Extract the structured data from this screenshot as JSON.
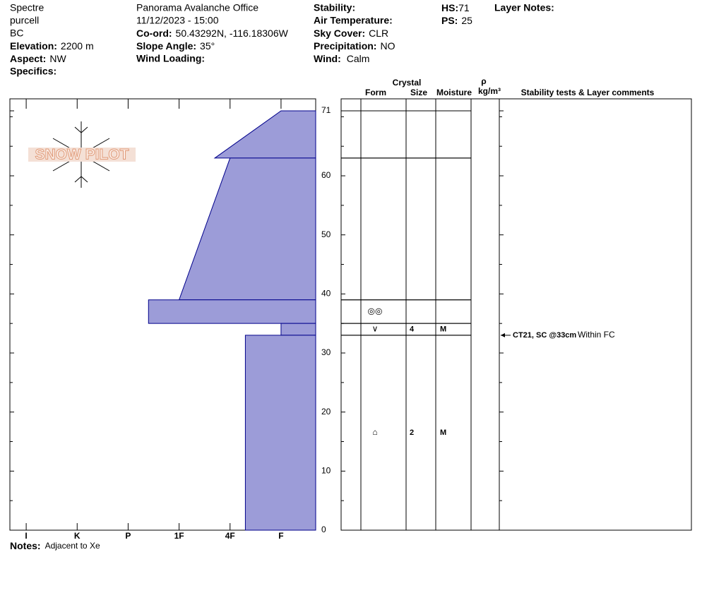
{
  "header": {
    "observer": "Spectre",
    "range": "purcell",
    "region": "BC",
    "elevation": {
      "label": "Elevation:",
      "value": "2200 m"
    },
    "aspect": {
      "label": "Aspect:",
      "value": "NW"
    },
    "specifics": {
      "label": "Specifics:"
    },
    "location": "Panorama Avalanche Office",
    "datetime": "11/12/2023 - 15:00",
    "coord": {
      "label": "Co-ord:",
      "value": "50.43292N, -116.18306W"
    },
    "slope_angle": {
      "label": "Slope Angle:",
      "value": "35°"
    },
    "wind_loading": {
      "label": "Wind Loading:"
    },
    "stability": {
      "label": "Stability:"
    },
    "air_temperature": {
      "label": "Air Temperature:"
    },
    "sky_cover": {
      "label": "Sky Cover:",
      "value": "CLR"
    },
    "precipitation": {
      "label": "Precipitation:",
      "value": "NO"
    },
    "wind": {
      "label": "Wind:",
      "value": "Calm"
    },
    "hs": {
      "label": "HS:",
      "value": 71
    },
    "ps": {
      "label": "PS:",
      "value": 25
    },
    "layer_notes": {
      "label": "Layer Notes:"
    }
  },
  "logo": "SNOW PILOT",
  "columns": {
    "crystal": "Crystal",
    "form": "Form",
    "size": "Size",
    "moisture": "Moisture",
    "rho": "ρ",
    "density_unit": "kg/m³",
    "comments": "Stability tests & Layer comments"
  },
  "notes": {
    "label": "Notes:",
    "value": "Adjacent to Xe"
  },
  "chart_data": {
    "type": "profile",
    "ylim": [
      0,
      71
    ],
    "yticks": [
      0,
      10,
      20,
      30,
      40,
      50,
      60,
      71
    ],
    "yticks_minor": [
      5,
      15,
      25,
      35,
      45,
      55,
      65,
      70
    ],
    "xlim": [
      6.32,
      0.32
    ],
    "xticks": [
      {
        "value": 6,
        "label": "I"
      },
      {
        "value": 5,
        "label": "K"
      },
      {
        "value": 4,
        "label": "P"
      },
      {
        "value": 3,
        "label": "1F"
      },
      {
        "value": 2,
        "label": "4F"
      },
      {
        "value": 1,
        "label": "F"
      }
    ],
    "color": "#9c9cd8",
    "layers": [
      {
        "top": 71,
        "bottom": 63,
        "hardness_top": 1,
        "hardness_bottom": 2.3
      },
      {
        "top": 63,
        "bottom": 39,
        "hardness_top": 2,
        "hardness_bottom": 3
      },
      {
        "top": 39,
        "bottom": 35,
        "hardness_top": 3.6,
        "hardness_bottom": 3.6
      },
      {
        "top": 35,
        "bottom": 33,
        "hardness_top": 1,
        "hardness_bottom": 1
      },
      {
        "top": 33,
        "bottom": 0,
        "hardness_top": 1.7,
        "hardness_bottom": 1.7
      }
    ],
    "grains": [
      {
        "top": 39,
        "bottom": 35,
        "form": "◎◎"
      },
      {
        "top": 35,
        "bottom": 33,
        "form": "∨",
        "size": 4,
        "moisture": "M"
      },
      {
        "top": 33,
        "bottom": 0,
        "form": "⌂",
        "size": 2,
        "moisture": "M"
      }
    ],
    "tests": [
      {
        "depth": 33,
        "label": "CT21, SC @33cm",
        "comment": "Within FC"
      }
    ]
  }
}
